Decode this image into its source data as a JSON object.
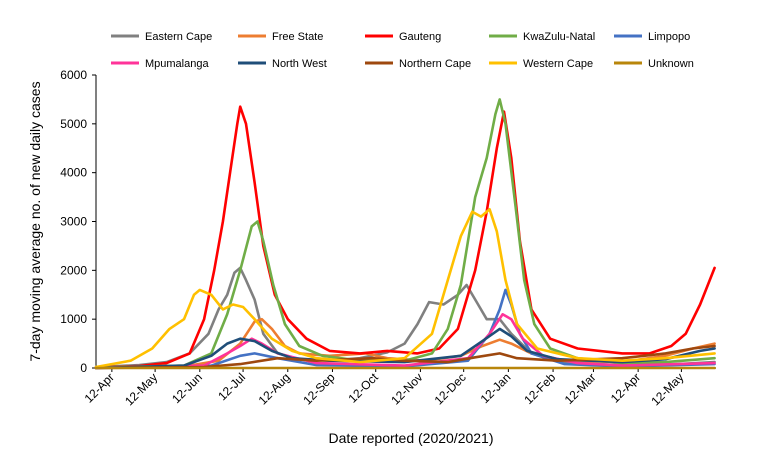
{
  "chart_data": {
    "type": "line",
    "title": "",
    "xlabel": "Date reported (2020/2021)",
    "ylabel": "7-day moving average no. of new daily cases",
    "ylim": [
      0,
      6000
    ],
    "yticks": [
      "0",
      "1000",
      "2000",
      "3000",
      "4000",
      "5000",
      "6000"
    ],
    "xlim": [
      "2020-04-01",
      "2021-06-05"
    ],
    "xticks": [
      {
        "date": "2020-04-12",
        "label": "12-Apr"
      },
      {
        "date": "2020-05-12",
        "label": "12-May"
      },
      {
        "date": "2020-06-12",
        "label": "12-Jun"
      },
      {
        "date": "2020-07-12",
        "label": "12-Jul"
      },
      {
        "date": "2020-08-12",
        "label": "12-Aug"
      },
      {
        "date": "2020-09-12",
        "label": "12-Sep"
      },
      {
        "date": "2020-10-12",
        "label": "12-Oct"
      },
      {
        "date": "2020-11-12",
        "label": "12-Nov"
      },
      {
        "date": "2020-12-12",
        "label": "12-Dec"
      },
      {
        "date": "2021-01-12",
        "label": "12-Jan"
      },
      {
        "date": "2021-02-12",
        "label": "12-Feb"
      },
      {
        "date": "2021-03-12",
        "label": "12-Mar"
      },
      {
        "date": "2021-04-12",
        "label": "12-Apr"
      },
      {
        "date": "2021-05-12",
        "label": "12-May"
      }
    ],
    "grid": false,
    "legend_position": "top",
    "series": [
      {
        "name": "Eastern Cape",
        "color": "#808080",
        "points": [
          [
            "2020-04-01",
            20
          ],
          [
            "2020-05-01",
            60
          ],
          [
            "2020-05-20",
            120
          ],
          [
            "2020-06-05",
            300
          ],
          [
            "2020-06-18",
            700
          ],
          [
            "2020-06-25",
            1200
          ],
          [
            "2020-07-01",
            1500
          ],
          [
            "2020-07-06",
            1950
          ],
          [
            "2020-07-10",
            2050
          ],
          [
            "2020-07-14",
            1800
          ],
          [
            "2020-07-20",
            1400
          ],
          [
            "2020-07-26",
            700
          ],
          [
            "2020-08-05",
            300
          ],
          [
            "2020-08-20",
            180
          ],
          [
            "2020-09-10",
            150
          ],
          [
            "2020-10-01",
            200
          ],
          [
            "2020-10-20",
            320
          ],
          [
            "2020-11-01",
            500
          ],
          [
            "2020-11-10",
            900
          ],
          [
            "2020-11-18",
            1350
          ],
          [
            "2020-11-28",
            1300
          ],
          [
            "2020-12-08",
            1500
          ],
          [
            "2020-12-14",
            1700
          ],
          [
            "2020-12-22",
            1300
          ],
          [
            "2020-12-28",
            1000
          ],
          [
            "2021-01-06",
            1000
          ],
          [
            "2021-01-14",
            700
          ],
          [
            "2021-01-28",
            300
          ],
          [
            "2021-02-20",
            100
          ],
          [
            "2021-04-01",
            60
          ],
          [
            "2021-05-10",
            80
          ],
          [
            "2021-06-04",
            120
          ]
        ]
      },
      {
        "name": "Free State",
        "color": "#ED7D31",
        "points": [
          [
            "2020-04-01",
            5
          ],
          [
            "2020-06-01",
            30
          ],
          [
            "2020-06-25",
            150
          ],
          [
            "2020-07-10",
            500
          ],
          [
            "2020-07-20",
            950
          ],
          [
            "2020-07-25",
            1000
          ],
          [
            "2020-08-01",
            800
          ],
          [
            "2020-08-10",
            450
          ],
          [
            "2020-08-20",
            300
          ],
          [
            "2020-09-10",
            250
          ],
          [
            "2020-10-05",
            300
          ],
          [
            "2020-10-20",
            200
          ],
          [
            "2020-11-15",
            150
          ],
          [
            "2020-12-10",
            250
          ],
          [
            "2020-12-25",
            450
          ],
          [
            "2021-01-06",
            580
          ],
          [
            "2021-01-14",
            500
          ],
          [
            "2021-01-28",
            300
          ],
          [
            "2021-02-20",
            150
          ],
          [
            "2021-04-01",
            120
          ],
          [
            "2021-05-01",
            250
          ],
          [
            "2021-05-20",
            400
          ],
          [
            "2021-06-04",
            500
          ]
        ]
      },
      {
        "name": "Gauteng",
        "color": "#FF0000",
        "points": [
          [
            "2020-04-01",
            10
          ],
          [
            "2020-05-01",
            40
          ],
          [
            "2020-05-20",
            100
          ],
          [
            "2020-06-05",
            300
          ],
          [
            "2020-06-15",
            1000
          ],
          [
            "2020-06-22",
            2000
          ],
          [
            "2020-06-28",
            3000
          ],
          [
            "2020-07-04",
            4200
          ],
          [
            "2020-07-08",
            5000
          ],
          [
            "2020-07-10",
            5350
          ],
          [
            "2020-07-14",
            5000
          ],
          [
            "2020-07-20",
            3800
          ],
          [
            "2020-07-26",
            2500
          ],
          [
            "2020-08-03",
            1500
          ],
          [
            "2020-08-12",
            1000
          ],
          [
            "2020-08-25",
            600
          ],
          [
            "2020-09-10",
            350
          ],
          [
            "2020-10-01",
            300
          ],
          [
            "2020-10-20",
            350
          ],
          [
            "2020-11-10",
            300
          ],
          [
            "2020-11-25",
            400
          ],
          [
            "2020-12-08",
            800
          ],
          [
            "2020-12-20",
            2000
          ],
          [
            "2020-12-28",
            3200
          ],
          [
            "2021-01-04",
            4500
          ],
          [
            "2021-01-09",
            5250
          ],
          [
            "2021-01-14",
            4300
          ],
          [
            "2021-01-20",
            2600
          ],
          [
            "2021-01-28",
            1200
          ],
          [
            "2021-02-10",
            600
          ],
          [
            "2021-03-01",
            400
          ],
          [
            "2021-04-01",
            300
          ],
          [
            "2021-04-20",
            300
          ],
          [
            "2021-05-05",
            450
          ],
          [
            "2021-05-15",
            700
          ],
          [
            "2021-05-25",
            1300
          ],
          [
            "2021-06-04",
            2050
          ]
        ]
      },
      {
        "name": "KwaZulu-Natal",
        "color": "#70AD47",
        "points": [
          [
            "2020-04-01",
            10
          ],
          [
            "2020-06-01",
            50
          ],
          [
            "2020-06-20",
            300
          ],
          [
            "2020-07-01",
            1100
          ],
          [
            "2020-07-10",
            2000
          ],
          [
            "2020-07-18",
            2900
          ],
          [
            "2020-07-22",
            3000
          ],
          [
            "2020-07-26",
            2600
          ],
          [
            "2020-08-02",
            1700
          ],
          [
            "2020-08-10",
            900
          ],
          [
            "2020-08-20",
            450
          ],
          [
            "2020-09-05",
            250
          ],
          [
            "2020-10-01",
            150
          ],
          [
            "2020-11-01",
            150
          ],
          [
            "2020-11-20",
            300
          ],
          [
            "2020-12-01",
            800
          ],
          [
            "2020-12-10",
            1700
          ],
          [
            "2020-12-20",
            3500
          ],
          [
            "2020-12-28",
            4300
          ],
          [
            "2021-01-03",
            5200
          ],
          [
            "2021-01-06",
            5500
          ],
          [
            "2021-01-10",
            5000
          ],
          [
            "2021-01-17",
            3300
          ],
          [
            "2021-01-23",
            1800
          ],
          [
            "2021-01-30",
            900
          ],
          [
            "2021-02-10",
            400
          ],
          [
            "2021-03-01",
            200
          ],
          [
            "2021-04-01",
            100
          ],
          [
            "2021-05-01",
            120
          ],
          [
            "2021-06-04",
            200
          ]
        ]
      },
      {
        "name": "Limpopo",
        "color": "#4472C4",
        "points": [
          [
            "2020-04-01",
            0
          ],
          [
            "2020-06-20",
            50
          ],
          [
            "2020-07-10",
            250
          ],
          [
            "2020-07-20",
            300
          ],
          [
            "2020-08-05",
            200
          ],
          [
            "2020-09-01",
            60
          ],
          [
            "2020-11-01",
            30
          ],
          [
            "2020-12-15",
            150
          ],
          [
            "2020-12-30",
            700
          ],
          [
            "2021-01-06",
            1200
          ],
          [
            "2021-01-10",
            1600
          ],
          [
            "2021-01-14",
            1300
          ],
          [
            "2021-01-20",
            700
          ],
          [
            "2021-01-28",
            300
          ],
          [
            "2021-02-20",
            80
          ],
          [
            "2021-04-01",
            30
          ],
          [
            "2021-06-04",
            80
          ]
        ]
      },
      {
        "name": "Mpumalanga",
        "color": "#FF3399",
        "points": [
          [
            "2020-04-01",
            0
          ],
          [
            "2020-06-15",
            50
          ],
          [
            "2020-07-01",
            300
          ],
          [
            "2020-07-10",
            450
          ],
          [
            "2020-07-18",
            600
          ],
          [
            "2020-07-25",
            500
          ],
          [
            "2020-08-05",
            300
          ],
          [
            "2020-09-01",
            100
          ],
          [
            "2020-11-01",
            50
          ],
          [
            "2020-12-15",
            200
          ],
          [
            "2020-12-30",
            700
          ],
          [
            "2021-01-08",
            1100
          ],
          [
            "2021-01-14",
            1000
          ],
          [
            "2021-01-22",
            600
          ],
          [
            "2021-02-05",
            250
          ],
          [
            "2021-03-01",
            100
          ],
          [
            "2021-04-01",
            50
          ],
          [
            "2021-06-04",
            100
          ]
        ]
      },
      {
        "name": "North West",
        "color": "#1F4E79",
        "points": [
          [
            "2020-04-01",
            0
          ],
          [
            "2020-06-01",
            50
          ],
          [
            "2020-06-20",
            250
          ],
          [
            "2020-07-01",
            500
          ],
          [
            "2020-07-10",
            600
          ],
          [
            "2020-07-20",
            550
          ],
          [
            "2020-08-01",
            350
          ],
          [
            "2020-08-15",
            200
          ],
          [
            "2020-09-10",
            150
          ],
          [
            "2020-11-01",
            120
          ],
          [
            "2020-12-10",
            250
          ],
          [
            "2020-12-25",
            550
          ],
          [
            "2021-01-06",
            800
          ],
          [
            "2021-01-14",
            650
          ],
          [
            "2021-01-25",
            350
          ],
          [
            "2021-02-15",
            180
          ],
          [
            "2021-04-01",
            120
          ],
          [
            "2021-05-01",
            180
          ],
          [
            "2021-05-25",
            350
          ],
          [
            "2021-06-04",
            400
          ]
        ]
      },
      {
        "name": "Northern Cape",
        "color": "#9E480E",
        "points": [
          [
            "2020-04-01",
            0
          ],
          [
            "2020-06-15",
            20
          ],
          [
            "2020-07-10",
            80
          ],
          [
            "2020-08-05",
            200
          ],
          [
            "2020-09-01",
            150
          ],
          [
            "2020-10-10",
            200
          ],
          [
            "2020-11-01",
            150
          ],
          [
            "2020-12-01",
            120
          ],
          [
            "2020-12-20",
            220
          ],
          [
            "2021-01-06",
            300
          ],
          [
            "2021-01-18",
            200
          ],
          [
            "2021-02-15",
            150
          ],
          [
            "2021-04-01",
            200
          ],
          [
            "2021-05-01",
            300
          ],
          [
            "2021-05-20",
            400
          ],
          [
            "2021-06-04",
            450
          ]
        ]
      },
      {
        "name": "Western Cape",
        "color": "#FFC000",
        "points": [
          [
            "2020-04-01",
            20
          ],
          [
            "2020-04-25",
            150
          ],
          [
            "2020-05-10",
            400
          ],
          [
            "2020-05-22",
            800
          ],
          [
            "2020-06-01",
            1000
          ],
          [
            "2020-06-08",
            1500
          ],
          [
            "2020-06-12",
            1600
          ],
          [
            "2020-06-20",
            1500
          ],
          [
            "2020-06-28",
            1200
          ],
          [
            "2020-07-05",
            1300
          ],
          [
            "2020-07-12",
            1250
          ],
          [
            "2020-07-20",
            1000
          ],
          [
            "2020-08-01",
            600
          ],
          [
            "2020-08-15",
            350
          ],
          [
            "2020-09-01",
            200
          ],
          [
            "2020-10-01",
            120
          ],
          [
            "2020-11-01",
            200
          ],
          [
            "2020-11-20",
            700
          ],
          [
            "2020-12-01",
            1800
          ],
          [
            "2020-12-10",
            2700
          ],
          [
            "2020-12-18",
            3200
          ],
          [
            "2020-12-24",
            3100
          ],
          [
            "2020-12-30",
            3250
          ],
          [
            "2021-01-04",
            2800
          ],
          [
            "2021-01-10",
            1800
          ],
          [
            "2021-01-18",
            900
          ],
          [
            "2021-02-01",
            400
          ],
          [
            "2021-03-01",
            200
          ],
          [
            "2021-04-01",
            150
          ],
          [
            "2021-05-01",
            200
          ],
          [
            "2021-06-04",
            300
          ]
        ]
      },
      {
        "name": "Unknown",
        "color": "#B8860B",
        "points": [
          [
            "2020-04-01",
            0
          ],
          [
            "2021-06-04",
            0
          ]
        ]
      }
    ]
  }
}
